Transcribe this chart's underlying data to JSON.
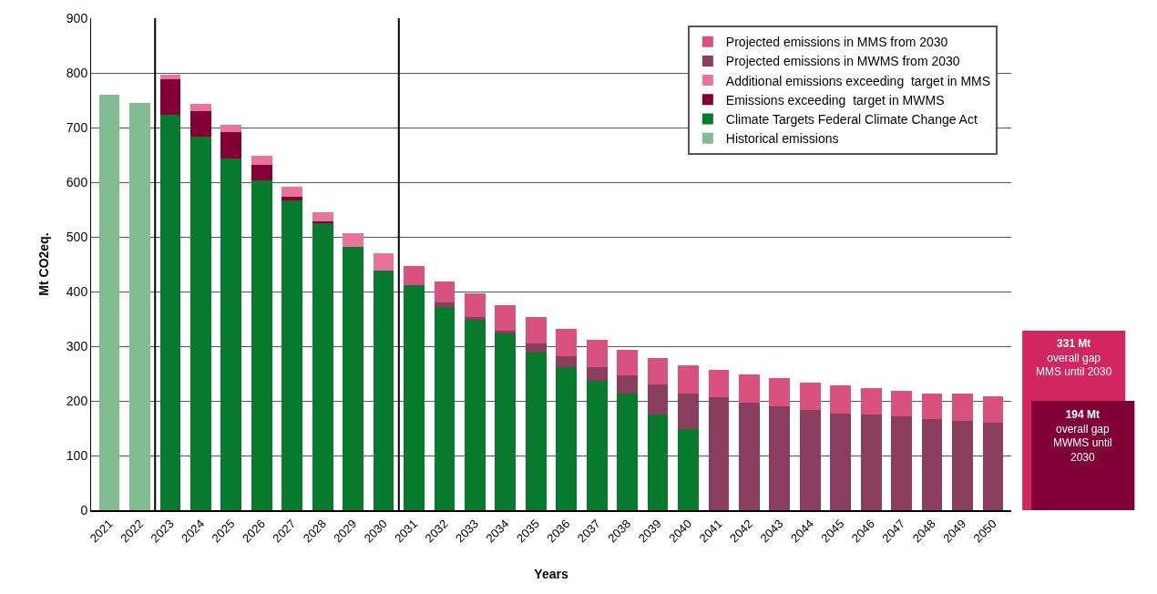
{
  "chart_data": {
    "type": "bar",
    "stacked": true,
    "xlabel": "Years",
    "ylabel": "Mt CO2eq.",
    "categories": [
      "2021",
      "2022",
      "2023",
      "2024",
      "2025",
      "2026",
      "2027",
      "2028",
      "2029",
      "2030",
      "2031",
      "2032",
      "2033",
      "2034",
      "2035",
      "2036",
      "2037",
      "2038",
      "2039",
      "2040",
      "2041",
      "2042",
      "2043",
      "2044",
      "2045",
      "2046",
      "2047",
      "2048",
      "2049",
      "2050"
    ],
    "series": [
      {
        "name": "Historical emissions",
        "color": "#82bc92",
        "values": [
          760,
          745,
          null,
          null,
          null,
          null,
          null,
          null,
          null,
          null,
          null,
          null,
          null,
          null,
          null,
          null,
          null,
          null,
          null,
          null,
          null,
          null,
          null,
          null,
          null,
          null,
          null,
          null,
          null,
          null
        ]
      },
      {
        "name": "Climate Targets Federal Climate Change Act",
        "color": "#087a2e",
        "values": [
          null,
          null,
          723,
          683,
          644,
          603,
          567,
          525,
          482,
          439,
          412,
          372,
          348,
          324,
          288,
          261,
          237,
          213,
          175,
          149,
          null,
          null,
          null,
          null,
          null,
          null,
          null,
          null,
          null,
          null
        ]
      },
      {
        "name": "Emissions exceeding  target in MWMS",
        "color": "#800035",
        "values": [
          null,
          null,
          65,
          47,
          48,
          29,
          6,
          3,
          null,
          null,
          null,
          null,
          null,
          null,
          null,
          null,
          null,
          null,
          null,
          null,
          null,
          null,
          null,
          null,
          null,
          null,
          null,
          null,
          null,
          null
        ]
      },
      {
        "name": "Additional emissions exceeding  target in MMS",
        "color": "#e8749c",
        "values": [
          null,
          null,
          9,
          14,
          13,
          16,
          18,
          17,
          25,
          31,
          null,
          null,
          null,
          null,
          null,
          null,
          null,
          null,
          null,
          null,
          null,
          null,
          null,
          null,
          null,
          null,
          null,
          null,
          null,
          null
        ]
      },
      {
        "name": "Projected emissions in MWMS from 2030",
        "color": "#8b3d5e",
        "values": [
          null,
          null,
          null,
          null,
          null,
          null,
          null,
          null,
          null,
          null,
          null,
          8,
          5,
          4,
          17,
          20,
          24,
          33,
          55,
          65,
          206,
          197,
          190,
          184,
          177,
          175,
          171,
          166,
          164,
          160
        ]
      },
      {
        "name": "Projected emissions in MMS from 2030",
        "color": "#d9527f",
        "values": [
          null,
          null,
          null,
          null,
          null,
          null,
          null,
          null,
          null,
          null,
          34,
          39,
          44,
          47,
          48,
          51,
          50,
          48,
          48,
          51,
          51,
          51,
          51,
          50,
          51,
          48,
          48,
          48,
          49,
          48
        ]
      }
    ],
    "ylim": [
      0,
      900
    ],
    "yticks": [
      0,
      100,
      200,
      300,
      400,
      500,
      600,
      700,
      800,
      900
    ],
    "grid": "y",
    "legend": "top right",
    "ref_lines": [
      {
        "axis": "x",
        "value": "2023",
        "color": "#000000"
      },
      {
        "axis": "x",
        "value": "2031",
        "color": "#000000"
      }
    ],
    "annotations": [
      "331 Mt\noverall gap\nMMS until 2030",
      "194 Mt\noverall gap\nMWMS until\n2030"
    ]
  }
}
